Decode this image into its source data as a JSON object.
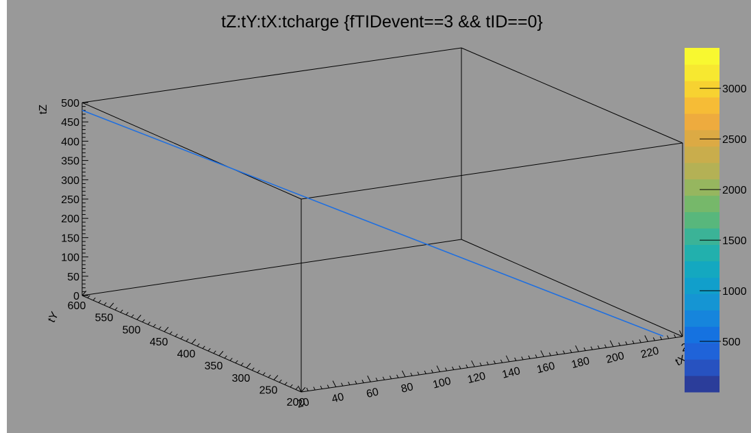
{
  "chart_data": {
    "type": "line3d",
    "title": "tZ:tY:tX:tcharge {fTIDevent==3 && tID==0}",
    "x_axis": {
      "label": "tX",
      "range": [
        20,
        240
      ],
      "tick_labels": [
        "20",
        "40",
        "60",
        "80",
        "100",
        "120",
        "140",
        "160",
        "180",
        "200",
        "220",
        "2"
      ]
    },
    "y_axis": {
      "label": "tY",
      "range": [
        200,
        600
      ],
      "tick_labels": [
        "200",
        "250",
        "300",
        "350",
        "400",
        "450",
        "500",
        "550",
        "600"
      ]
    },
    "z_axis": {
      "label": "tZ",
      "range": [
        0,
        500
      ],
      "tick_labels": [
        "0",
        "50",
        "100",
        "150",
        "200",
        "250",
        "300",
        "350",
        "400",
        "450",
        "500"
      ]
    },
    "colorbar": {
      "range": [
        0,
        3400
      ],
      "tick_labels": [
        "500",
        "1000",
        "1500",
        "2000",
        "2500",
        "3000"
      ],
      "n_levels": 20
    },
    "series": [
      {
        "color": "#1f6fe0",
        "x": [
          20,
          232
        ],
        "y": [
          600,
          210
        ],
        "z": [
          480,
          0
        ]
      }
    ],
    "grid": false,
    "colors": {
      "pad_background": "#999999",
      "frame_background": "#ffffff",
      "line": "#1f6fe0",
      "palette": [
        "#2b3d9a",
        "#2752c0",
        "#1f63d9",
        "#1572e0",
        "#1685dc",
        "#1595d3",
        "#119fcb",
        "#14a8c0",
        "#22b0ad",
        "#3bb397",
        "#58b77c",
        "#76b86a",
        "#96b65f",
        "#b4b155",
        "#c9ad4c",
        "#dcaa44",
        "#eeab3e",
        "#f6bc36",
        "#f7d231",
        "#f7e830",
        "#f8f830"
      ]
    }
  }
}
